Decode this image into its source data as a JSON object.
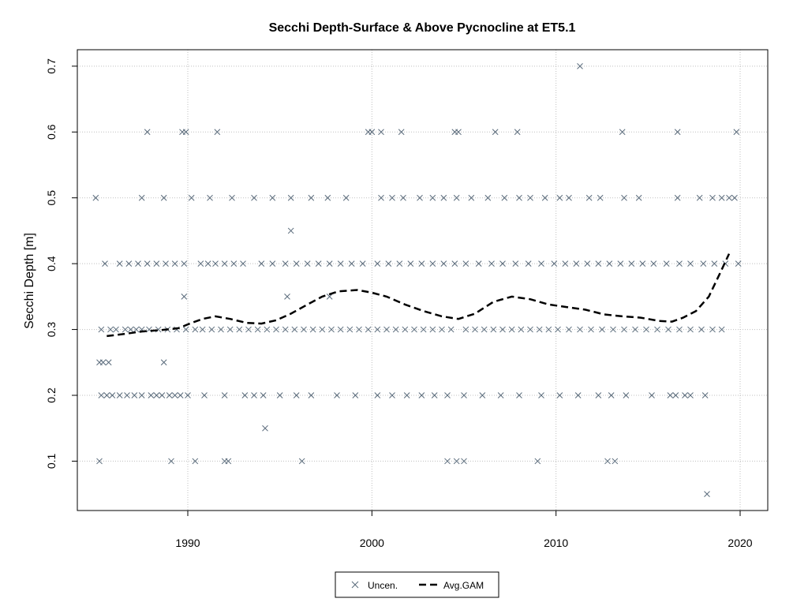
{
  "chart_data": {
    "type": "scatter",
    "title": "Secchi Depth-Surface & Above Pycnocline at ET5.1",
    "xlabel": "",
    "ylabel": "Secchi Depth [m]",
    "xlim": [
      1984,
      2021.5
    ],
    "ylim": [
      0.025,
      0.725
    ],
    "x_ticks": [
      1990,
      2000,
      2010,
      2020
    ],
    "y_ticks": [
      0.1,
      0.2,
      0.3,
      0.4,
      0.5,
      0.6,
      0.7
    ],
    "x_tick_labels": [
      "1990",
      "2000",
      "2010",
      "2020"
    ],
    "y_tick_labels": [
      "0.1",
      "0.2",
      "0.3",
      "0.4",
      "0.5",
      "0.6",
      "0.7"
    ],
    "grid": true,
    "legend_position": "bottom",
    "colors": {
      "points": "#5a6b7b",
      "gam": "#000000",
      "grid": "#bfbfbf"
    },
    "series": [
      {
        "name": "Uncen.",
        "marker": "x",
        "points": [
          [
            1985.0,
            0.5
          ],
          [
            1985.2,
            0.25
          ],
          [
            1985.4,
            0.25
          ],
          [
            1985.7,
            0.25
          ],
          [
            1985.2,
            0.1
          ],
          [
            1985.3,
            0.3
          ],
          [
            1985.8,
            0.3
          ],
          [
            1986.1,
            0.3
          ],
          [
            1986.6,
            0.3
          ],
          [
            1986.9,
            0.3
          ],
          [
            1987.2,
            0.3
          ],
          [
            1987.5,
            0.3
          ],
          [
            1987.9,
            0.3
          ],
          [
            1988.4,
            0.3
          ],
          [
            1988.9,
            0.3
          ],
          [
            1989.4,
            0.3
          ],
          [
            1989.9,
            0.3
          ],
          [
            1985.3,
            0.2
          ],
          [
            1985.6,
            0.2
          ],
          [
            1985.9,
            0.2
          ],
          [
            1986.3,
            0.2
          ],
          [
            1986.7,
            0.2
          ],
          [
            1987.1,
            0.2
          ],
          [
            1987.5,
            0.2
          ],
          [
            1988.0,
            0.2
          ],
          [
            1988.3,
            0.2
          ],
          [
            1988.6,
            0.2
          ],
          [
            1989.0,
            0.2
          ],
          [
            1989.3,
            0.2
          ],
          [
            1989.6,
            0.2
          ],
          [
            1990.0,
            0.2
          ],
          [
            1985.5,
            0.4
          ],
          [
            1986.3,
            0.4
          ],
          [
            1986.8,
            0.4
          ],
          [
            1987.3,
            0.4
          ],
          [
            1987.8,
            0.4
          ],
          [
            1988.3,
            0.4
          ],
          [
            1988.8,
            0.4
          ],
          [
            1989.3,
            0.4
          ],
          [
            1989.8,
            0.4
          ],
          [
            1987.8,
            0.6
          ],
          [
            1989.7,
            0.6
          ],
          [
            1989.9,
            0.6
          ],
          [
            1991.6,
            0.6
          ],
          [
            1987.5,
            0.5
          ],
          [
            1988.7,
            0.5
          ],
          [
            1990.2,
            0.5
          ],
          [
            1991.2,
            0.5
          ],
          [
            1992.4,
            0.5
          ],
          [
            1988.7,
            0.25
          ],
          [
            1989.1,
            0.1
          ],
          [
            1989.8,
            0.35
          ],
          [
            1990.4,
            0.1
          ],
          [
            1990.4,
            0.3
          ],
          [
            1990.8,
            0.3
          ],
          [
            1991.3,
            0.3
          ],
          [
            1991.8,
            0.3
          ],
          [
            1992.3,
            0.3
          ],
          [
            1992.8,
            0.3
          ],
          [
            1993.3,
            0.3
          ],
          [
            1993.8,
            0.3
          ],
          [
            1990.7,
            0.4
          ],
          [
            1991.1,
            0.4
          ],
          [
            1991.5,
            0.4
          ],
          [
            1992.0,
            0.4
          ],
          [
            1992.5,
            0.4
          ],
          [
            1993.0,
            0.4
          ],
          [
            1990.9,
            0.2
          ],
          [
            1992.0,
            0.2
          ],
          [
            1993.1,
            0.2
          ],
          [
            1993.6,
            0.2
          ],
          [
            1992.0,
            0.1
          ],
          [
            1992.2,
            0.1
          ],
          [
            1993.6,
            0.5
          ],
          [
            1994.6,
            0.5
          ],
          [
            1995.6,
            0.5
          ],
          [
            1996.7,
            0.5
          ],
          [
            1997.6,
            0.5
          ],
          [
            1998.6,
            0.5
          ],
          [
            1994.2,
            0.15
          ],
          [
            1995.6,
            0.45
          ],
          [
            1995.4,
            0.35
          ],
          [
            1996.2,
            0.1
          ],
          [
            1994.3,
            0.3
          ],
          [
            1994.8,
            0.3
          ],
          [
            1995.3,
            0.3
          ],
          [
            1995.8,
            0.3
          ],
          [
            1996.3,
            0.3
          ],
          [
            1996.8,
            0.3
          ],
          [
            1997.3,
            0.3
          ],
          [
            1997.8,
            0.3
          ],
          [
            1998.3,
            0.3
          ],
          [
            1998.8,
            0.3
          ],
          [
            1999.3,
            0.3
          ],
          [
            1999.8,
            0.3
          ],
          [
            1994.0,
            0.4
          ],
          [
            1994.6,
            0.4
          ],
          [
            1995.3,
            0.4
          ],
          [
            1995.9,
            0.4
          ],
          [
            1996.5,
            0.4
          ],
          [
            1997.1,
            0.4
          ],
          [
            1997.7,
            0.4
          ],
          [
            1998.3,
            0.4
          ],
          [
            1998.9,
            0.4
          ],
          [
            1999.5,
            0.4
          ],
          [
            1994.1,
            0.2
          ],
          [
            1995.0,
            0.2
          ],
          [
            1995.9,
            0.2
          ],
          [
            1996.7,
            0.2
          ],
          [
            1998.1,
            0.2
          ],
          [
            1999.1,
            0.2
          ],
          [
            1997.7,
            0.35
          ],
          [
            1999.8,
            0.6
          ],
          [
            2000.0,
            0.6
          ],
          [
            2000.5,
            0.6
          ],
          [
            2001.6,
            0.6
          ],
          [
            2000.5,
            0.5
          ],
          [
            2001.1,
            0.5
          ],
          [
            2001.7,
            0.5
          ],
          [
            2002.6,
            0.5
          ],
          [
            2003.3,
            0.5
          ],
          [
            2003.9,
            0.5
          ],
          [
            2004.6,
            0.5
          ],
          [
            2000.3,
            0.4
          ],
          [
            2000.9,
            0.4
          ],
          [
            2001.5,
            0.4
          ],
          [
            2002.1,
            0.4
          ],
          [
            2002.7,
            0.4
          ],
          [
            2003.3,
            0.4
          ],
          [
            2003.9,
            0.4
          ],
          [
            2004.5,
            0.4
          ],
          [
            2000.3,
            0.3
          ],
          [
            2000.8,
            0.3
          ],
          [
            2001.3,
            0.3
          ],
          [
            2001.8,
            0.3
          ],
          [
            2002.3,
            0.3
          ],
          [
            2002.8,
            0.3
          ],
          [
            2003.3,
            0.3
          ],
          [
            2003.8,
            0.3
          ],
          [
            2004.3,
            0.3
          ],
          [
            2000.3,
            0.2
          ],
          [
            2001.1,
            0.2
          ],
          [
            2001.9,
            0.2
          ],
          [
            2002.7,
            0.2
          ],
          [
            2003.4,
            0.2
          ],
          [
            2004.1,
            0.2
          ],
          [
            2004.1,
            0.1
          ],
          [
            2004.6,
            0.1
          ],
          [
            2005.0,
            0.1
          ],
          [
            2004.5,
            0.6
          ],
          [
            2004.7,
            0.6
          ],
          [
            2006.7,
            0.6
          ],
          [
            2007.9,
            0.6
          ],
          [
            2005.4,
            0.5
          ],
          [
            2006.3,
            0.5
          ],
          [
            2007.2,
            0.5
          ],
          [
            2008.0,
            0.5
          ],
          [
            2008.6,
            0.5
          ],
          [
            2009.4,
            0.5
          ],
          [
            2010.2,
            0.5
          ],
          [
            2005.1,
            0.4
          ],
          [
            2005.8,
            0.4
          ],
          [
            2006.5,
            0.4
          ],
          [
            2007.1,
            0.4
          ],
          [
            2007.8,
            0.4
          ],
          [
            2008.5,
            0.4
          ],
          [
            2009.2,
            0.4
          ],
          [
            2009.9,
            0.4
          ],
          [
            2005.1,
            0.3
          ],
          [
            2005.6,
            0.3
          ],
          [
            2006.1,
            0.3
          ],
          [
            2006.6,
            0.3
          ],
          [
            2007.1,
            0.3
          ],
          [
            2007.6,
            0.3
          ],
          [
            2008.1,
            0.3
          ],
          [
            2008.6,
            0.3
          ],
          [
            2009.1,
            0.3
          ],
          [
            2009.6,
            0.3
          ],
          [
            2005.0,
            0.2
          ],
          [
            2006.0,
            0.2
          ],
          [
            2007.0,
            0.2
          ],
          [
            2008.0,
            0.2
          ],
          [
            2009.2,
            0.2
          ],
          [
            2009.0,
            0.1
          ],
          [
            2011.3,
            0.7
          ],
          [
            2010.7,
            0.5
          ],
          [
            2011.8,
            0.5
          ],
          [
            2012.4,
            0.5
          ],
          [
            2013.7,
            0.5
          ],
          [
            2014.5,
            0.5
          ],
          [
            2010.5,
            0.4
          ],
          [
            2011.1,
            0.4
          ],
          [
            2011.7,
            0.4
          ],
          [
            2012.3,
            0.4
          ],
          [
            2012.9,
            0.4
          ],
          [
            2013.5,
            0.4
          ],
          [
            2014.1,
            0.4
          ],
          [
            2014.7,
            0.4
          ],
          [
            2015.3,
            0.4
          ],
          [
            2010.1,
            0.3
          ],
          [
            2010.7,
            0.3
          ],
          [
            2011.3,
            0.3
          ],
          [
            2011.9,
            0.3
          ],
          [
            2012.5,
            0.3
          ],
          [
            2013.1,
            0.3
          ],
          [
            2013.7,
            0.3
          ],
          [
            2014.3,
            0.3
          ],
          [
            2014.9,
            0.3
          ],
          [
            2015.5,
            0.3
          ],
          [
            2010.2,
            0.2
          ],
          [
            2011.2,
            0.2
          ],
          [
            2012.3,
            0.2
          ],
          [
            2013.0,
            0.2
          ],
          [
            2013.8,
            0.2
          ],
          [
            2015.2,
            0.2
          ],
          [
            2012.8,
            0.1
          ],
          [
            2013.2,
            0.1
          ],
          [
            2013.6,
            0.6
          ],
          [
            2016.6,
            0.6
          ],
          [
            2019.8,
            0.6
          ],
          [
            2016.6,
            0.5
          ],
          [
            2017.8,
            0.5
          ],
          [
            2018.5,
            0.5
          ],
          [
            2019.0,
            0.5
          ],
          [
            2019.4,
            0.5
          ],
          [
            2019.7,
            0.5
          ],
          [
            2016.0,
            0.4
          ],
          [
            2016.7,
            0.4
          ],
          [
            2017.3,
            0.4
          ],
          [
            2018.0,
            0.4
          ],
          [
            2018.6,
            0.4
          ],
          [
            2019.2,
            0.4
          ],
          [
            2019.9,
            0.4
          ],
          [
            2016.1,
            0.3
          ],
          [
            2016.7,
            0.3
          ],
          [
            2017.3,
            0.3
          ],
          [
            2017.9,
            0.3
          ],
          [
            2018.5,
            0.3
          ],
          [
            2019.0,
            0.3
          ],
          [
            2016.2,
            0.2
          ],
          [
            2016.5,
            0.2
          ],
          [
            2017.0,
            0.2
          ],
          [
            2017.3,
            0.2
          ],
          [
            2018.1,
            0.2
          ],
          [
            2018.2,
            0.05
          ]
        ]
      },
      {
        "name": "Avg.GAM",
        "style": "dashed",
        "points": [
          [
            1985.6,
            0.29
          ],
          [
            1986.5,
            0.293
          ],
          [
            1987.5,
            0.297
          ],
          [
            1988.5,
            0.299
          ],
          [
            1989.5,
            0.302
          ],
          [
            1990.2,
            0.31
          ],
          [
            1990.8,
            0.316
          ],
          [
            1991.5,
            0.32
          ],
          [
            1992.3,
            0.316
          ],
          [
            1993.2,
            0.31
          ],
          [
            1994.0,
            0.309
          ],
          [
            1994.8,
            0.314
          ],
          [
            1995.6,
            0.324
          ],
          [
            1996.5,
            0.338
          ],
          [
            1997.3,
            0.35
          ],
          [
            1998.2,
            0.358
          ],
          [
            1999.2,
            0.36
          ],
          [
            2000.0,
            0.356
          ],
          [
            2000.8,
            0.35
          ],
          [
            2001.8,
            0.338
          ],
          [
            2002.8,
            0.328
          ],
          [
            2003.8,
            0.32
          ],
          [
            2004.7,
            0.316
          ],
          [
            2005.6,
            0.324
          ],
          [
            2006.6,
            0.342
          ],
          [
            2007.6,
            0.35
          ],
          [
            2008.6,
            0.346
          ],
          [
            2009.6,
            0.338
          ],
          [
            2010.6,
            0.334
          ],
          [
            2011.6,
            0.33
          ],
          [
            2012.6,
            0.323
          ],
          [
            2013.6,
            0.32
          ],
          [
            2014.6,
            0.318
          ],
          [
            2015.6,
            0.313
          ],
          [
            2016.3,
            0.312
          ],
          [
            2016.9,
            0.318
          ],
          [
            2017.6,
            0.328
          ],
          [
            2018.3,
            0.35
          ],
          [
            2018.9,
            0.385
          ],
          [
            2019.4,
            0.415
          ]
        ]
      }
    ]
  }
}
